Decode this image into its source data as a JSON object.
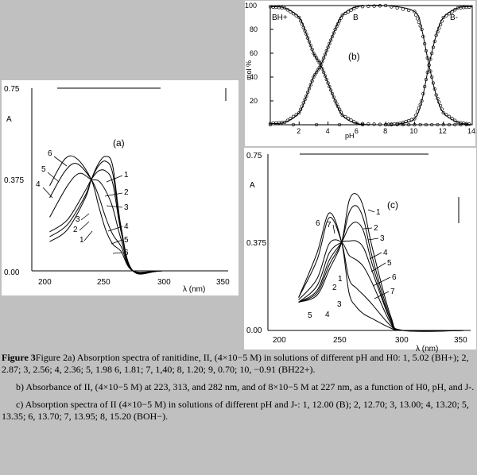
{
  "panel_a": {
    "label": "(a)",
    "ylabel": "A",
    "xlabel": "λ (nm)",
    "y_ticks": [
      "0.75",
      "0.375",
      "0.00"
    ],
    "x_ticks": [
      "200",
      "250",
      "300",
      "350"
    ],
    "left_labels": [
      "6",
      "5",
      "4",
      "3",
      "2",
      "1"
    ],
    "right_labels": [
      "1",
      "2",
      "3",
      "4",
      "5",
      "6"
    ]
  },
  "panel_b": {
    "label": "(b)",
    "ylabel": "mol %",
    "xlabel": "pH",
    "y_ticks": [
      "100",
      "80",
      "60",
      "40",
      "20"
    ],
    "x_ticks": [
      "2",
      "4",
      "6",
      "8",
      "10",
      "12",
      "14"
    ],
    "species": [
      "BH+",
      "B",
      "B-"
    ]
  },
  "panel_c": {
    "label": "(c)",
    "ylabel": "A",
    "xlabel": "λ (nm)",
    "y_ticks": [
      "0.75",
      "0.375",
      "0.00"
    ],
    "x_ticks": [
      "200",
      "250",
      "300",
      "350"
    ],
    "left_labels": [
      "7",
      "6",
      "1",
      "2",
      "3",
      "4",
      "5"
    ],
    "right_labels": [
      "1",
      "2",
      "3",
      "4",
      "5",
      "6",
      "7"
    ]
  },
  "chart_data": [
    {
      "type": "line",
      "title": "(a)",
      "xlabel": "λ (nm)",
      "ylabel": "A",
      "xlim": [
        190,
        355
      ],
      "ylim": [
        0,
        0.75
      ],
      "isosbestic_point": [
        240,
        0.375
      ],
      "series": [
        {
          "name": "1",
          "x": [
            205,
            220,
            235,
            240,
            246,
            252,
            258,
            265,
            275,
            300,
            350
          ],
          "y": [
            0.12,
            0.17,
            0.3,
            0.375,
            0.44,
            0.47,
            0.43,
            0.18,
            0.0,
            0.0,
            0.0
          ]
        },
        {
          "name": "2",
          "x": [
            205,
            220,
            235,
            240,
            246,
            252,
            258,
            265,
            275,
            300,
            350
          ],
          "y": [
            0.14,
            0.19,
            0.31,
            0.375,
            0.43,
            0.45,
            0.4,
            0.17,
            0.0,
            0.0,
            0.0
          ]
        },
        {
          "name": "3",
          "x": [
            205,
            220,
            235,
            240,
            246,
            252,
            258,
            265,
            275,
            300,
            350
          ],
          "y": [
            0.16,
            0.21,
            0.33,
            0.375,
            0.41,
            0.41,
            0.36,
            0.16,
            0.0,
            0.0,
            0.0
          ]
        },
        {
          "name": "4",
          "x": [
            205,
            220,
            230,
            240,
            246,
            252,
            258,
            265,
            275,
            300,
            350
          ],
          "y": [
            0.22,
            0.35,
            0.4,
            0.375,
            0.37,
            0.33,
            0.26,
            0.13,
            0.0,
            0.0,
            0.0
          ]
        },
        {
          "name": "5",
          "x": [
            205,
            218,
            228,
            240,
            246,
            252,
            258,
            265,
            275,
            300,
            350
          ],
          "y": [
            0.3,
            0.41,
            0.44,
            0.375,
            0.31,
            0.22,
            0.15,
            0.1,
            0.0,
            0.0,
            0.0
          ]
        },
        {
          "name": "6",
          "x": [
            205,
            218,
            228,
            240,
            246,
            252,
            258,
            265,
            275,
            300,
            350
          ],
          "y": [
            0.35,
            0.46,
            0.46,
            0.375,
            0.27,
            0.17,
            0.11,
            0.08,
            0.0,
            0.0,
            0.0
          ]
        }
      ]
    },
    {
      "type": "scatter",
      "title": "(b)",
      "xlabel": "pH",
      "ylabel": "mol %",
      "xlim": [
        0,
        14
      ],
      "ylim": [
        0,
        100
      ],
      "crossing_points_pH": [
        3.5,
        11.0
      ],
      "series": [
        {
          "name": "BH+",
          "x": [
            0,
            1,
            2,
            2.5,
            3,
            3.5,
            4,
            4.5,
            5,
            6,
            8,
            10,
            12,
            14
          ],
          "y": [
            99,
            98,
            90,
            76,
            60,
            50,
            35,
            20,
            8,
            1,
            0,
            0,
            0,
            0
          ]
        },
        {
          "name": "B",
          "x": [
            0,
            1,
            2,
            2.5,
            3,
            3.5,
            4,
            4.5,
            5,
            6,
            8,
            10,
            10.5,
            11,
            11.5,
            12,
            13,
            14
          ],
          "y": [
            1,
            2,
            10,
            24,
            40,
            50,
            65,
            80,
            92,
            99,
            100,
            95,
            80,
            50,
            25,
            10,
            2,
            0
          ]
        },
        {
          "name": "B-",
          "x": [
            0,
            8,
            9,
            10,
            10.5,
            11,
            11.5,
            12,
            13,
            14
          ],
          "y": [
            0,
            0,
            1,
            5,
            20,
            50,
            75,
            90,
            98,
            99
          ]
        }
      ]
    },
    {
      "type": "line",
      "title": "(c)",
      "xlabel": "λ (nm)",
      "ylabel": "A",
      "xlim": [
        190,
        355
      ],
      "ylim": [
        0,
        0.75
      ],
      "isosbestic_point": [
        250,
        0.375
      ],
      "series": [
        {
          "name": "1",
          "x": [
            215,
            230,
            240,
            250,
            256,
            262,
            268,
            275,
            290,
            300,
            350
          ],
          "y": [
            0.12,
            0.15,
            0.26,
            0.375,
            0.55,
            0.58,
            0.52,
            0.35,
            0.06,
            0.0,
            0.0
          ]
        },
        {
          "name": "2",
          "x": [
            215,
            230,
            240,
            250,
            256,
            262,
            268,
            275,
            290,
            300,
            350
          ],
          "y": [
            0.12,
            0.16,
            0.28,
            0.375,
            0.5,
            0.53,
            0.47,
            0.31,
            0.05,
            0.0,
            0.0
          ]
        },
        {
          "name": "3",
          "x": [
            215,
            230,
            240,
            250,
            256,
            262,
            268,
            275,
            290,
            300,
            350
          ],
          "y": [
            0.12,
            0.17,
            0.3,
            0.375,
            0.44,
            0.46,
            0.42,
            0.28,
            0.04,
            0.0,
            0.0
          ]
        },
        {
          "name": "4",
          "x": [
            215,
            230,
            240,
            250,
            256,
            262,
            268,
            275,
            290,
            300,
            350
          ],
          "y": [
            0.12,
            0.19,
            0.33,
            0.375,
            0.38,
            0.38,
            0.35,
            0.25,
            0.04,
            0.0,
            0.0
          ]
        },
        {
          "name": "5",
          "x": [
            215,
            230,
            240,
            250,
            256,
            262,
            268,
            275,
            290,
            300,
            350
          ],
          "y": [
            0.13,
            0.22,
            0.37,
            0.375,
            0.32,
            0.3,
            0.27,
            0.2,
            0.03,
            0.0,
            0.0
          ]
        },
        {
          "name": "6",
          "x": [
            215,
            230,
            240,
            250,
            256,
            262,
            268,
            275,
            290,
            300,
            350
          ],
          "y": [
            0.14,
            0.3,
            0.48,
            0.375,
            0.22,
            0.18,
            0.15,
            0.11,
            0.02,
            0.0,
            0.0
          ]
        },
        {
          "name": "7",
          "x": [
            215,
            230,
            240,
            250,
            256,
            262,
            268,
            275,
            290,
            300,
            350
          ],
          "y": [
            0.14,
            0.33,
            0.5,
            0.375,
            0.16,
            0.1,
            0.07,
            0.05,
            0.01,
            0.0,
            0.0
          ]
        }
      ]
    }
  ],
  "caption": {
    "lead": "Figure 3",
    "a_text": "Figure 2a) Absorption spectra of ranitidine, II, (4×10−5 M) in solutions of different pH and H0: 1, 5.02 (BH+); 2, 2.87; 3, 2.56; 4, 2.36; 5, 1.98 6, 1.81; 7, 1,40; 8, 1.20; 9, 0.70; 10, −0.91 (BH22+).",
    "b_text": "b) Absorbance of II, (4×10−5 M) at 223, 313, and 282 nm, and of 8×10−5 M at 227 nm, as a function of H0, pH, and J-.",
    "c_text": "c) Absorption spectra of II (4×10−5 M) in solutions of different pH and J-: 1, 12.00 (B); 2, 12.70; 3, 13.00; 4, 13.20; 5, 13.35; 6, 13.70; 7, 13.95; 8, 15.20 (BOH−)."
  }
}
